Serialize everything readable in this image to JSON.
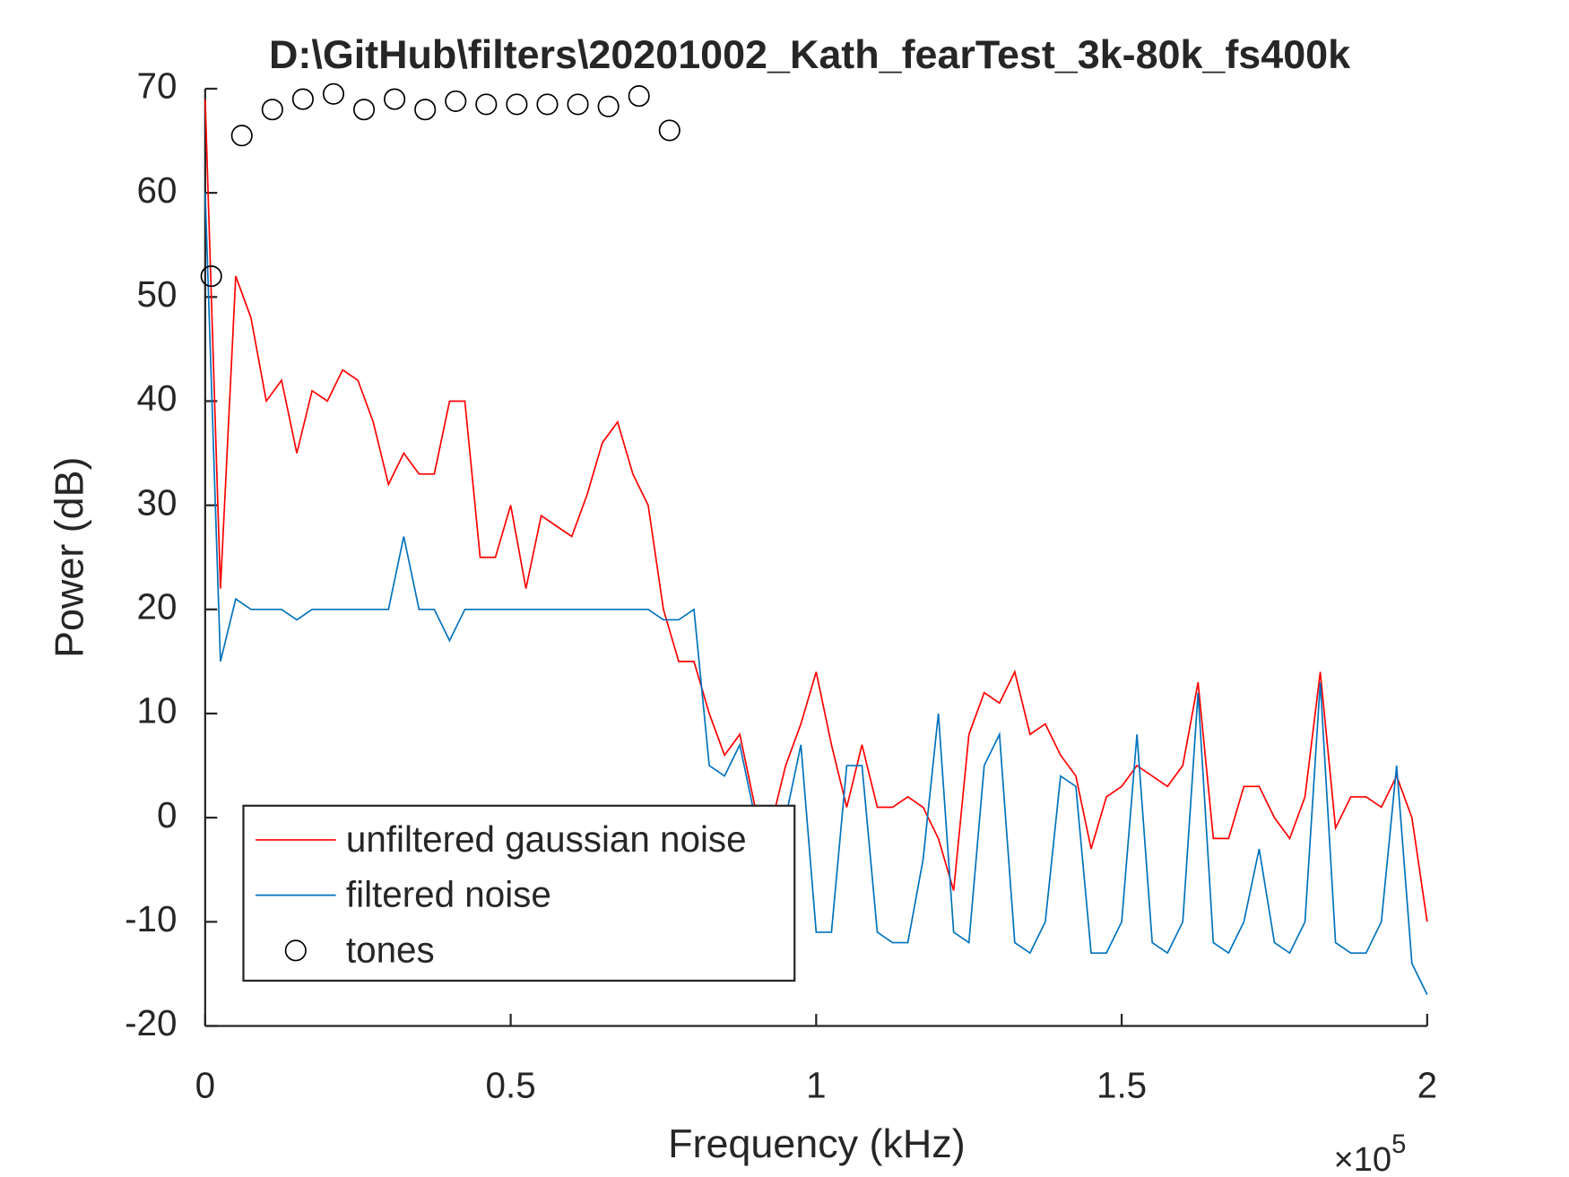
{
  "chart_data": {
    "type": "line",
    "title": "D:\\GitHub\\filters\\20201002_Kath_fearTest_3k-80k_fs400k",
    "x_label": "Frequency (kHz)",
    "y_label": "Power (dB)",
    "x_multiplier": {
      "base": "×10",
      "exponent": "5"
    },
    "xlim": [
      0,
      200000
    ],
    "ylim": [
      -20,
      70
    ],
    "xticks": [
      0,
      {
        "value": 50000,
        "label": "0.5"
      },
      {
        "value": 100000,
        "label": "1"
      },
      {
        "value": 150000,
        "label": "1.5"
      },
      {
        "value": 200000,
        "label": "2"
      }
    ],
    "yticks": [
      -20,
      -10,
      0,
      10,
      20,
      30,
      40,
      50,
      60,
      70
    ],
    "grid": false,
    "legend": "lower left",
    "series": [
      {
        "name": "unfiltered gaussian noise",
        "color": "#ff0000",
        "x": [
          0,
          2500,
          5000,
          7500,
          10000,
          12500,
          15000,
          17500,
          20000,
          22500,
          25000,
          27500,
          30000,
          32500,
          35000,
          37500,
          40000,
          42500,
          45000,
          47500,
          50000,
          52500,
          55000,
          57500,
          60000,
          62500,
          65000,
          67500,
          70000,
          72500,
          75000,
          77500,
          80000,
          82500,
          85000,
          87500,
          90000,
          92500,
          95000,
          97500,
          100000,
          102500,
          105000,
          107500,
          110000,
          112500,
          115000,
          117500,
          120000,
          122500,
          125000,
          127500,
          130000,
          132500,
          135000,
          137500,
          140000,
          142500,
          145000,
          147500,
          150000,
          152500,
          155000,
          157500,
          160000,
          162500,
          165000,
          167500,
          170000,
          172500,
          175000,
          177500,
          180000,
          182500,
          185000,
          187500,
          190000,
          192500,
          195000,
          197500,
          200000
        ],
        "values": [
          69,
          22,
          52,
          48,
          40,
          42,
          35,
          41,
          40,
          43,
          42,
          38,
          32,
          35,
          33,
          33,
          40,
          40,
          25,
          25,
          30,
          22,
          29,
          28,
          27,
          31,
          36,
          38,
          33,
          30,
          20,
          15,
          15,
          10,
          6,
          8,
          1,
          -1,
          5,
          9,
          14,
          7,
          1,
          7,
          1,
          1,
          2,
          1,
          -2,
          -7,
          8,
          12,
          11,
          14,
          8,
          9,
          6,
          4,
          -3,
          2,
          3,
          5,
          4,
          3,
          5,
          13,
          -2,
          -2,
          3,
          3,
          0,
          -2,
          2,
          14,
          -1,
          2,
          2,
          1,
          4,
          0,
          -10
        ]
      },
      {
        "name": "filtered noise",
        "color": "#0072bd",
        "x": [
          0,
          2500,
          5000,
          7500,
          10000,
          12500,
          15000,
          17500,
          20000,
          22500,
          25000,
          27500,
          30000,
          32500,
          35000,
          37500,
          40000,
          42500,
          45000,
          47500,
          50000,
          52500,
          55000,
          57500,
          60000,
          62500,
          65000,
          67500,
          70000,
          72500,
          75000,
          77500,
          80000,
          82500,
          85000,
          87500,
          90000,
          92500,
          95000,
          97500,
          100000,
          102500,
          105000,
          107500,
          110000,
          112500,
          115000,
          117500,
          120000,
          122500,
          125000,
          127500,
          130000,
          132500,
          135000,
          137500,
          140000,
          142500,
          145000,
          147500,
          150000,
          152500,
          155000,
          157500,
          160000,
          162500,
          165000,
          167500,
          170000,
          172500,
          175000,
          177500,
          180000,
          182500,
          185000,
          187500,
          190000,
          192500,
          195000,
          197500,
          200000
        ],
        "values": [
          60,
          15,
          21,
          20,
          20,
          20,
          19,
          20,
          20,
          20,
          20,
          20,
          20,
          27,
          20,
          20,
          17,
          20,
          20,
          20,
          20,
          20,
          20,
          20,
          20,
          20,
          20,
          20,
          20,
          20,
          19,
          19,
          20,
          5,
          4,
          7,
          0,
          -1,
          0,
          7,
          -11,
          -11,
          5,
          5,
          -11,
          -12,
          -12,
          -4,
          10,
          -11,
          -12,
          5,
          8,
          -12,
          -13,
          -10,
          4,
          3,
          -13,
          -13,
          -10,
          8,
          -12,
          -13,
          -10,
          12,
          -12,
          -13,
          -10,
          -3,
          -12,
          -13,
          -10,
          13,
          -12,
          -13,
          -13,
          -10,
          5,
          -14,
          -17
        ]
      },
      {
        "name": "tones",
        "color": "#000000",
        "marker": "o",
        "x": [
          1000,
          6000,
          11000,
          16000,
          21000,
          26000,
          31000,
          36000,
          41000,
          46000,
          51000,
          56000,
          61000,
          66000,
          71000,
          76000
        ],
        "values": [
          52,
          65.5,
          68,
          69,
          69.5,
          68,
          69,
          68,
          68.8,
          68.5,
          68.5,
          68.5,
          68.5,
          68.3,
          69.3,
          66
        ]
      }
    ]
  }
}
